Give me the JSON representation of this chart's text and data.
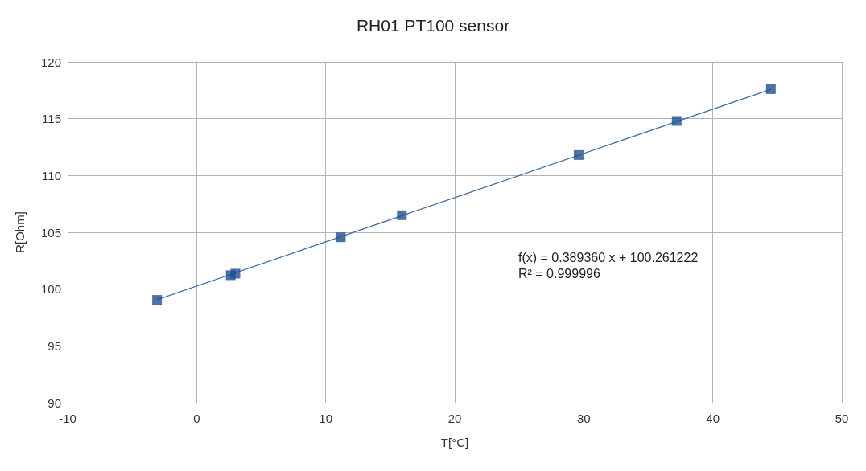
{
  "chart_data": {
    "type": "scatter",
    "title": "RH01 PT100 sensor",
    "xlabel": "T[°C]",
    "ylabel": "R[Ohm]",
    "xlim": [
      -10,
      50
    ],
    "xticks": [
      -10,
      0,
      10,
      20,
      30,
      40,
      50
    ],
    "ylim": [
      90,
      120
    ],
    "yticks": [
      90,
      95,
      100,
      105,
      110,
      115,
      120
    ],
    "grid": true,
    "marker": "square",
    "series": [
      {
        "color": "#1f4e8c",
        "x": [
          -3.07,
          2.64,
          3.0,
          11.17,
          15.9,
          29.6,
          37.2,
          44.5
        ],
        "values": [
          99.05,
          101.22,
          101.36,
          104.56,
          106.5,
          111.8,
          114.8,
          117.6
        ]
      },
      {
        "type": "line",
        "color": "#3e6fa8",
        "x": [
          -3.07,
          44.5
        ],
        "values": [
          99.07,
          117.59
        ],
        "marker": "none"
      }
    ],
    "annotations": [
      "f(x) = 0.389360 x + 100.261222\nR² = 0.999996"
    ]
  }
}
